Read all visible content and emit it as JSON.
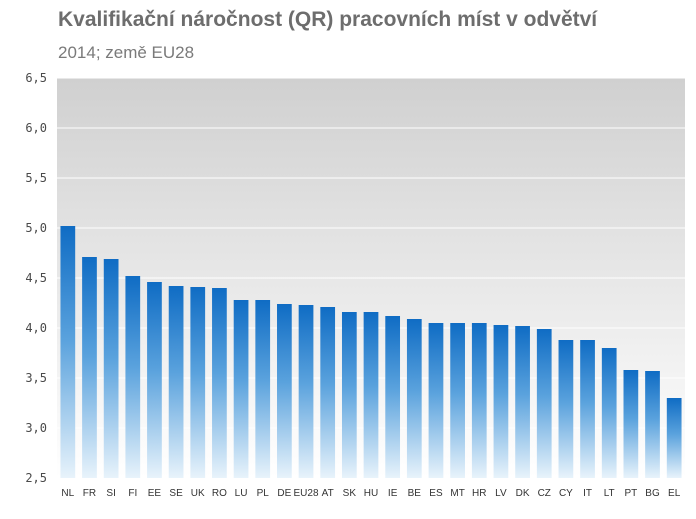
{
  "chart_data": {
    "type": "bar",
    "title": "Kvalifikační náročnost (QR)  pracovních míst v odvětví",
    "subtitle": "2014; země EU28",
    "xlabel": "",
    "ylabel": "",
    "ylim": [
      2.5,
      6.5
    ],
    "yticks": [
      "2,5",
      "3,0",
      "3,5",
      "4,0",
      "4,5",
      "5,0",
      "5,5",
      "6,0",
      "6,5"
    ],
    "grid": true,
    "bar_color": "#1874c8",
    "categories": [
      "NL",
      "FR",
      "SI",
      "FI",
      "EE",
      "SE",
      "UK",
      "RO",
      "LU",
      "PL",
      "DE",
      "EU28",
      "AT",
      "SK",
      "HU",
      "IE",
      "BE",
      "ES",
      "MT",
      "HR",
      "LV",
      "DK",
      "CZ",
      "CY",
      "IT",
      "LT",
      "PT",
      "BG",
      "EL"
    ],
    "values": [
      5.02,
      4.71,
      4.69,
      4.52,
      4.46,
      4.42,
      4.41,
      4.4,
      4.28,
      4.28,
      4.24,
      4.23,
      4.21,
      4.16,
      4.16,
      4.12,
      4.09,
      4.05,
      4.05,
      4.05,
      4.03,
      4.02,
      3.99,
      3.88,
      3.88,
      3.8,
      3.58,
      3.57,
      3.3
    ]
  }
}
